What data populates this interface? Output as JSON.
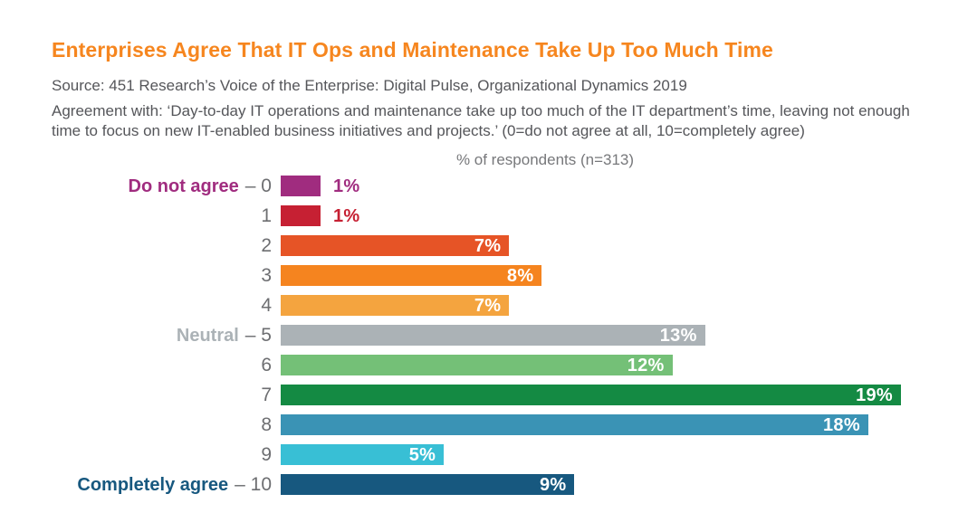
{
  "title": "Enterprises Agree That IT Ops and Maintenance Take Up Too Much Time",
  "title_color": "#F6861F",
  "source": "Source: 451 Research’s Voice of the Enterprise: Digital Pulse, Organizational Dynamics 2019",
  "description": "Agreement with: ‘Day-to-day IT operations and maintenance take up too much of the IT department’s time, leaving not enough time to focus on new IT-enabled business initiatives and projects.’ (0=do not agree at all, 10=completely agree)",
  "chart_data": {
    "type": "bar",
    "orientation": "horizontal",
    "axis_title": "% of respondents (n=313)",
    "unit": "%",
    "xlim": [
      0,
      19
    ],
    "categories": [
      "0",
      "1",
      "2",
      "3",
      "4",
      "5",
      "6",
      "7",
      "8",
      "9",
      "10"
    ],
    "values": [
      1,
      1,
      7,
      8,
      7,
      13,
      12,
      19,
      18,
      5,
      9
    ],
    "category_annotations": {
      "0": "Do not agree",
      "5": "Neutral",
      "10": "Completely agree"
    },
    "rows": [
      {
        "prefix": "Do not agree",
        "prefix_color": "#A02C7F",
        "scale": "0",
        "value": 1,
        "value_label": "1%",
        "color": "#A02C7F",
        "value_position": "outside"
      },
      {
        "prefix": "",
        "prefix_color": "",
        "scale": "1",
        "value": 1,
        "value_label": "1%",
        "color": "#C62033",
        "value_position": "outside"
      },
      {
        "prefix": "",
        "prefix_color": "",
        "scale": "2",
        "value": 7,
        "value_label": "7%",
        "color": "#E65426",
        "value_position": "inside"
      },
      {
        "prefix": "",
        "prefix_color": "",
        "scale": "3",
        "value": 8,
        "value_label": "8%",
        "color": "#F5841F",
        "value_position": "inside"
      },
      {
        "prefix": "",
        "prefix_color": "",
        "scale": "4",
        "value": 7,
        "value_label": "7%",
        "color": "#F4A43F",
        "value_position": "inside"
      },
      {
        "prefix": "Neutral",
        "prefix_color": "#ABB2B6",
        "scale": "5",
        "value": 13,
        "value_label": "13%",
        "color": "#ABB2B6",
        "value_position": "inside"
      },
      {
        "prefix": "",
        "prefix_color": "",
        "scale": "6",
        "value": 12,
        "value_label": "12%",
        "color": "#74C077",
        "value_position": "inside"
      },
      {
        "prefix": "",
        "prefix_color": "",
        "scale": "7",
        "value": 19,
        "value_label": "19%",
        "color": "#148A43",
        "value_position": "inside"
      },
      {
        "prefix": "",
        "prefix_color": "",
        "scale": "8",
        "value": 18,
        "value_label": "18%",
        "color": "#3A93B5",
        "value_position": "inside"
      },
      {
        "prefix": "",
        "prefix_color": "",
        "scale": "9",
        "value": 5,
        "value_label": "5%",
        "color": "#38BFD5",
        "value_position": "inside"
      },
      {
        "prefix": "Completely agree",
        "prefix_color": "#17587F",
        "scale": "10",
        "value": 9,
        "value_label": "9%",
        "color": "#17587F",
        "value_position": "inside"
      }
    ]
  }
}
